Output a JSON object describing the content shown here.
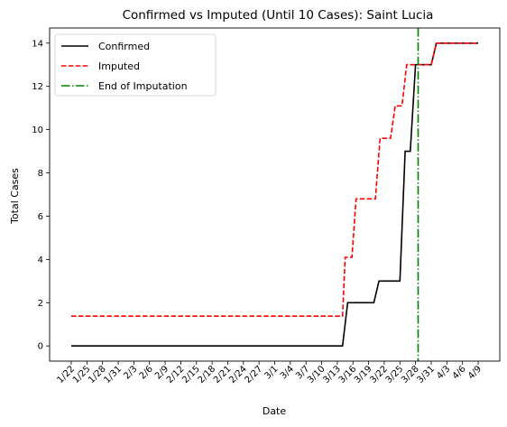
{
  "chart_data": {
    "type": "line",
    "title": "Confirmed vs Imputed (Until 10 Cases): Saint Lucia",
    "xlabel": "Date",
    "ylabel": "Total Cases",
    "x_tick_labels": [
      "1/22",
      "1/25",
      "1/28",
      "1/31",
      "2/3",
      "2/6",
      "2/9",
      "2/12",
      "2/15",
      "2/18",
      "2/21",
      "2/24",
      "2/27",
      "3/1",
      "3/4",
      "3/7",
      "3/10",
      "3/13",
      "3/16",
      "3/19",
      "3/22",
      "3/25",
      "3/28",
      "3/31",
      "4/3",
      "4/6",
      "4/9"
    ],
    "x_range_days": [
      0,
      78
    ],
    "y_ticks": [
      0,
      2,
      4,
      6,
      8,
      10,
      12,
      14
    ],
    "ylim": [
      -0.7,
      14.7
    ],
    "legend_position": "upper-left",
    "grid": false,
    "series": [
      {
        "name": "Confirmed",
        "color": "#000000",
        "style": "solid",
        "points": [
          [
            0,
            0
          ],
          [
            52,
            0
          ],
          [
            53,
            2
          ],
          [
            58,
            2
          ],
          [
            59,
            3
          ],
          [
            63,
            3
          ],
          [
            64,
            9
          ],
          [
            65,
            9
          ],
          [
            66,
            13
          ],
          [
            69,
            13
          ],
          [
            70,
            14
          ],
          [
            78,
            14
          ]
        ]
      },
      {
        "name": "Imputed",
        "color": "#ff0000",
        "style": "dashed",
        "points": [
          [
            0,
            1.38
          ],
          [
            52,
            1.38
          ],
          [
            52.5,
            4.1
          ],
          [
            53.8,
            4.1
          ],
          [
            54.6,
            6.8
          ],
          [
            58.3,
            6.8
          ],
          [
            59.2,
            9.6
          ],
          [
            61.2,
            9.6
          ],
          [
            62.1,
            11.1
          ],
          [
            63.4,
            11.1
          ],
          [
            64.3,
            13
          ],
          [
            69,
            13
          ],
          [
            70,
            14
          ],
          [
            78,
            14
          ]
        ]
      },
      {
        "name": "End of Imputation",
        "color": "#008000",
        "style": "dashdot",
        "x": 66.5
      }
    ]
  }
}
